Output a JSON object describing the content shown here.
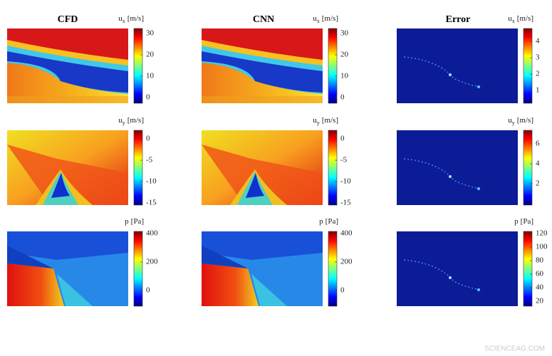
{
  "columns": [
    {
      "title": "CFD"
    },
    {
      "title": "CNN"
    },
    {
      "title": "Error"
    }
  ],
  "rows": [
    [
      {
        "label": {
          "symbol": "u",
          "subscript": "x",
          "unit": "[m/s]"
        },
        "ticks": [
          30,
          20,
          10,
          0
        ]
      },
      {
        "label": {
          "symbol": "u",
          "subscript": "x",
          "unit": "[m/s]"
        },
        "ticks": [
          30,
          20,
          10,
          0
        ]
      },
      {
        "label": {
          "symbol": "u",
          "subscript": "x",
          "unit": "[m/s]"
        },
        "ticks": [
          4,
          3,
          2,
          1
        ]
      }
    ],
    [
      {
        "label": {
          "symbol": "u",
          "subscript": "y",
          "unit": "[m/s]"
        },
        "ticks": [
          0,
          -5,
          -10,
          -15
        ]
      },
      {
        "label": {
          "symbol": "u",
          "subscript": "y",
          "unit": "[m/s]"
        },
        "ticks": [
          0,
          -5,
          -10,
          -15
        ]
      },
      {
        "label": {
          "symbol": "u",
          "subscript": "y",
          "unit": "[m/s]"
        },
        "ticks": [
          6,
          4,
          2
        ]
      }
    ],
    [
      {
        "label": {
          "symbol": "p",
          "unit": "[Pa]"
        },
        "ticks": [
          400,
          200,
          0
        ]
      },
      {
        "label": {
          "symbol": "p",
          "unit": "[Pa]"
        },
        "ticks": [
          400,
          200,
          0
        ]
      },
      {
        "label": {
          "symbol": "p",
          "unit": "[Pa]"
        },
        "ticks": [
          120,
          100,
          80,
          60,
          40,
          20
        ]
      }
    ]
  ],
  "watermark": "SCIENCEAG.COM"
}
